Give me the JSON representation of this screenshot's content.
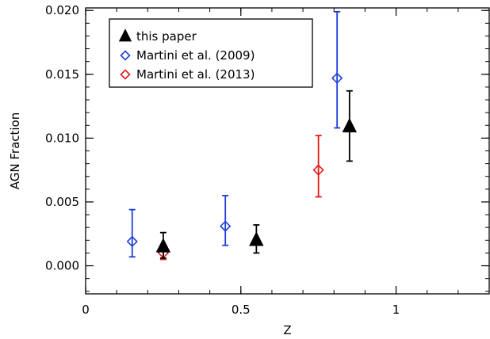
{
  "chart_data": {
    "type": "scatter",
    "title": "",
    "xlabel": "Z",
    "ylabel": "AGN Fraction",
    "xlim": [
      0,
      1.3
    ],
    "ylim": [
      -0.0022,
      0.0202
    ],
    "xticks": [
      0,
      0.5,
      1
    ],
    "xtick_labels": [
      "0",
      "0.5",
      "1"
    ],
    "yticks": [
      0.0,
      0.005,
      0.01,
      0.015,
      0.02
    ],
    "ytick_labels": [
      "0.000",
      "0.005",
      "0.010",
      "0.015",
      "0.020"
    ],
    "grid": false,
    "legend_position": "top-left",
    "series": [
      {
        "name": "this paper",
        "marker": "filled-triangle",
        "color": "#000000",
        "points": [
          {
            "x": 0.25,
            "y": 0.0015,
            "lo": 0.0006,
            "hi": 0.0026
          },
          {
            "x": 0.55,
            "y": 0.002,
            "lo": 0.001,
            "hi": 0.0032
          },
          {
            "x": 0.85,
            "y": 0.0109,
            "lo": 0.0082,
            "hi": 0.0137
          }
        ]
      },
      {
        "name": "Martini et al. (2009)",
        "marker": "open-diamond",
        "color": "#1e3fd8",
        "points": [
          {
            "x": 0.15,
            "y": 0.0019,
            "lo": 0.0007,
            "hi": 0.0044
          },
          {
            "x": 0.45,
            "y": 0.0031,
            "lo": 0.0016,
            "hi": 0.0055
          },
          {
            "x": 0.81,
            "y": 0.0147,
            "lo": 0.0108,
            "hi": 0.0199
          }
        ]
      },
      {
        "name": "Martini et al. (2013)",
        "marker": "open-diamond",
        "color": "#e0191c",
        "points": [
          {
            "x": 0.25,
            "y": 0.001,
            "lo": 0.0005,
            "hi": 0.0015
          },
          {
            "x": 0.75,
            "y": 0.0075,
            "lo": 0.0054,
            "hi": 0.0102
          }
        ]
      }
    ]
  }
}
